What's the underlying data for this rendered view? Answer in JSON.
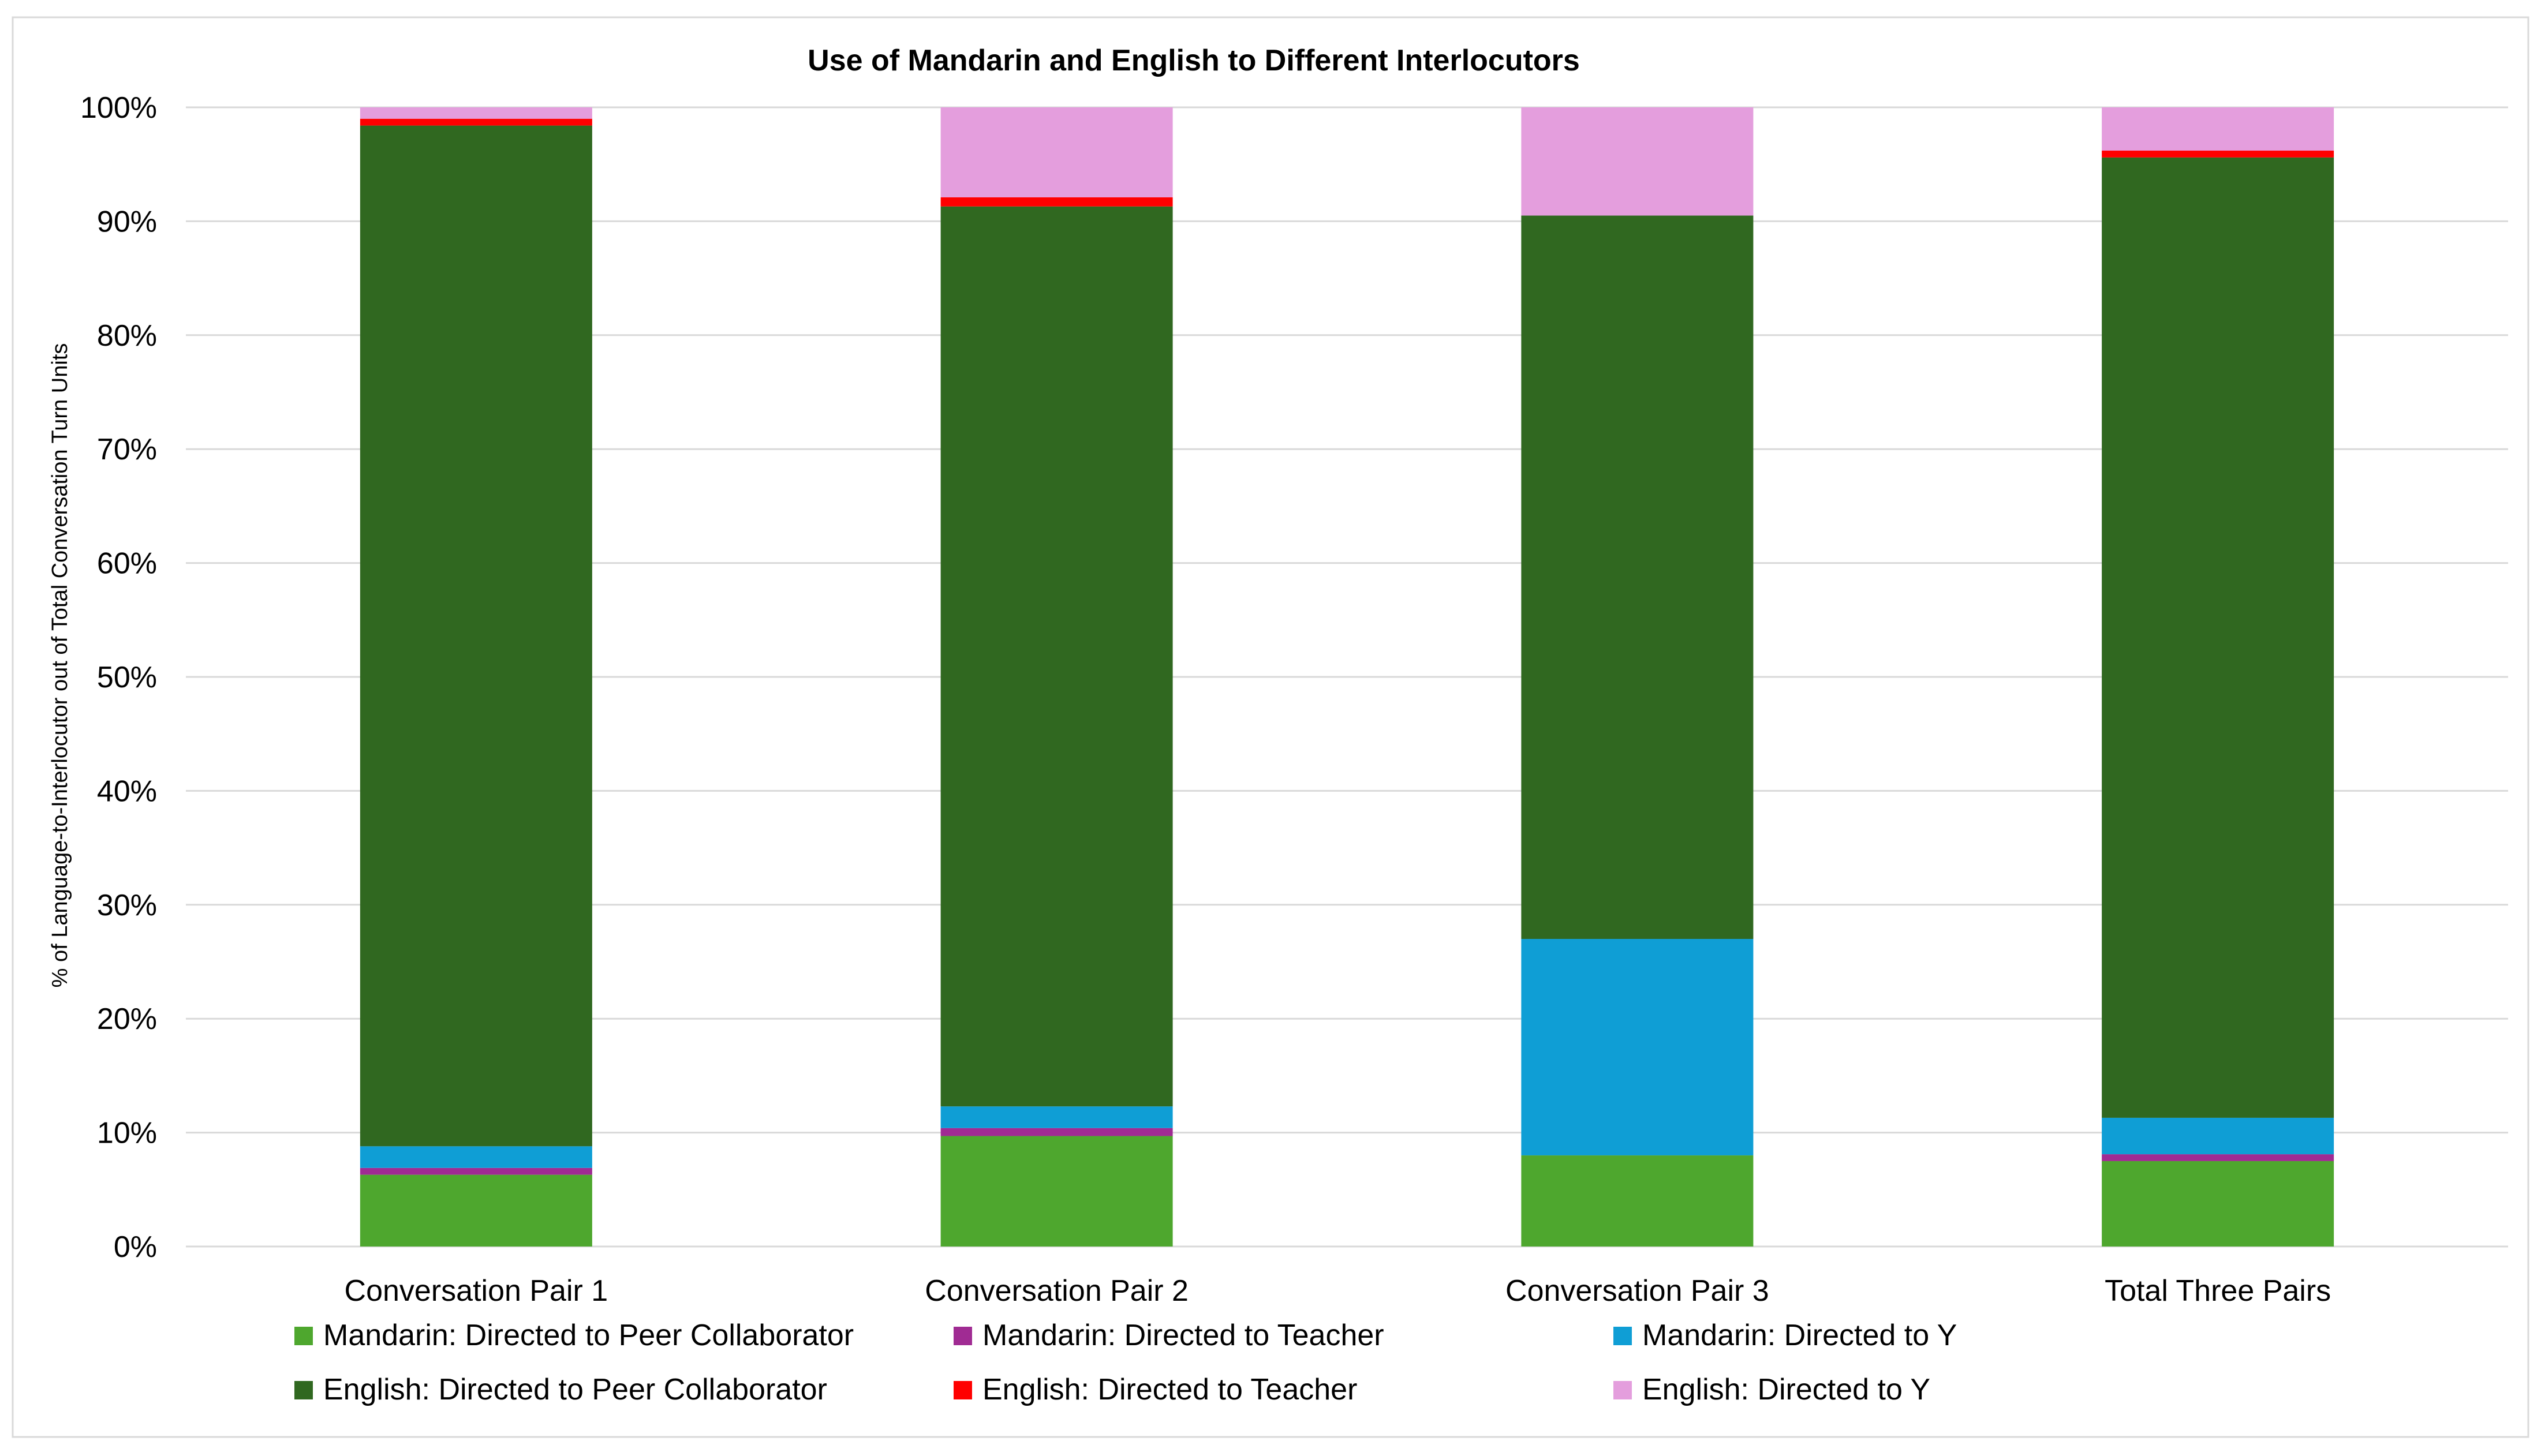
{
  "chart_data": {
    "type": "bar",
    "stacked": true,
    "title": "Use of Mandarin and English to Different Interlocutors",
    "xlabel": "",
    "ylabel": "% of Language-to-Interlocutor out of Total Conversation Turn Units",
    "ylim": [
      0,
      100
    ],
    "yticks": [
      0,
      10,
      20,
      30,
      40,
      50,
      60,
      70,
      80,
      90,
      100
    ],
    "ytick_labels": [
      "0%",
      "10%",
      "20%",
      "30%",
      "40%",
      "50%",
      "60%",
      "70%",
      "80%",
      "90%",
      "100%"
    ],
    "grid": true,
    "legend_position": "bottom",
    "categories": [
      "Conversation Pair 1",
      "Conversation Pair 2",
      "Conversation Pair 3",
      "Total Three Pairs"
    ],
    "series": [
      {
        "name": "Mandarin: Directed to Peer Collaborator",
        "color": "#4ea72e",
        "values": [
          6.3,
          9.7,
          8.0,
          7.5
        ]
      },
      {
        "name": "Mandarin: Directed to Teacher",
        "color": "#a02b93",
        "values": [
          0.6,
          0.7,
          0.0,
          0.6
        ]
      },
      {
        "name": "Mandarin: Directed to Y",
        "color": "#0f9ed5",
        "values": [
          1.9,
          1.9,
          19.0,
          3.2
        ]
      },
      {
        "name": "English: Directed to Peer Collaborator",
        "color": "#306820",
        "values": [
          89.6,
          79.0,
          63.5,
          84.3
        ]
      },
      {
        "name": "English: Directed to Teacher",
        "color": "#ff0000",
        "values": [
          0.6,
          0.8,
          0.0,
          0.6
        ]
      },
      {
        "name": "English: Directed to Y",
        "color": "#e49edd",
        "values": [
          1.0,
          7.9,
          9.5,
          3.8
        ]
      }
    ]
  }
}
